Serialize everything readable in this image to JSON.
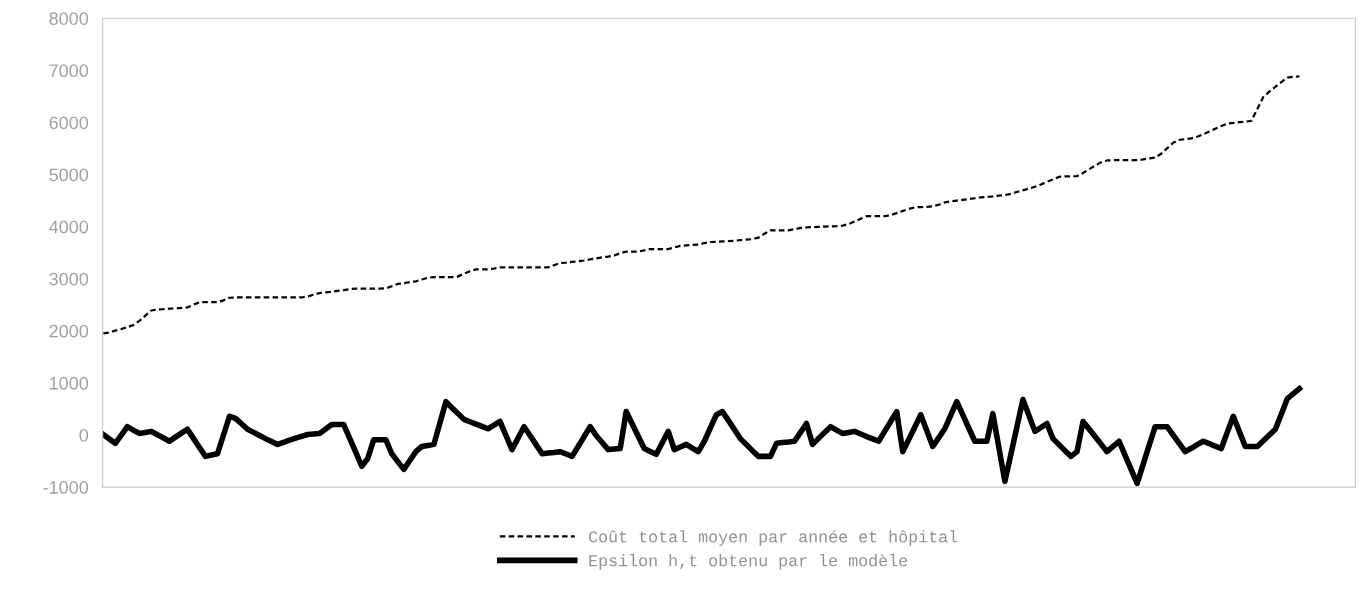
{
  "chart_data": {
    "type": "line",
    "categories": [
      null,
      null,
      null,
      null,
      null,
      null,
      null,
      null,
      null,
      null,
      null,
      null,
      null,
      null,
      null,
      null,
      null,
      null,
      null,
      null,
      null,
      null,
      null,
      null,
      null,
      null,
      null,
      null,
      null,
      null,
      null,
      null,
      null,
      null,
      null,
      null,
      null,
      null,
      null,
      null,
      null,
      null,
      null,
      null,
      null,
      null,
      null,
      null,
      null,
      null,
      null,
      null,
      null,
      null,
      null,
      null,
      null,
      null,
      null,
      null,
      null,
      null,
      null,
      null,
      null,
      null,
      null,
      null,
      null,
      null,
      null,
      null,
      null,
      null,
      null,
      null,
      null,
      null,
      null,
      null,
      null,
      null,
      null,
      null,
      null,
      null,
      null,
      null,
      null,
      null,
      null,
      null,
      null,
      null,
      null,
      null,
      null,
      null,
      null,
      null,
      null,
      null,
      null,
      null,
      null,
      null,
      null,
      null,
      null,
      null,
      null,
      null,
      null,
      null,
      null,
      null,
      null,
      null,
      null,
      null,
      null,
      null,
      null,
      null,
      null,
      null,
      null,
      null,
      null,
      null,
      null,
      null,
      null,
      null,
      null,
      null,
      null,
      null,
      null,
      null,
      null,
      null,
      null,
      null,
      null,
      null,
      null,
      null,
      null,
      null,
      null,
      null,
      null,
      null,
      null,
      null,
      null,
      null,
      null,
      null,
      null,
      null,
      null,
      null,
      null,
      null,
      null,
      null,
      null,
      null,
      null,
      null,
      null,
      null,
      null,
      null,
      null,
      null,
      null,
      null,
      null,
      null,
      null,
      null,
      null,
      null,
      null,
      null,
      null,
      null,
      null,
      null,
      null,
      null,
      null,
      null,
      null,
      null,
      null,
      null
    ],
    "ylim": [
      -1000,
      8000
    ],
    "yticks": [
      -1000,
      0,
      1000,
      2000,
      3000,
      4000,
      5000,
      6000,
      7000,
      8000
    ],
    "tick_labels": "y",
    "grid": false,
    "legend": "bottom",
    "series": [
      {
        "name": "Coût total moyen par année et hôpital",
        "color": "#000000",
        "line_style": "dashed",
        "values": [
          1950,
          1965,
          2005,
          2035,
          2070,
          2110,
          2190,
          2290,
          2390,
          2410,
          2415,
          2425,
          2430,
          2440,
          2450,
          2500,
          2550,
          2550,
          2550,
          2550,
          2585,
          2635,
          2640,
          2640,
          2640,
          2640,
          2640,
          2640,
          2640,
          2640,
          2640,
          2640,
          2640,
          2640,
          2660,
          2695,
          2725,
          2740,
          2750,
          2765,
          2780,
          2800,
          2810,
          2810,
          2810,
          2810,
          2810,
          2815,
          2855,
          2900,
          2915,
          2935,
          2950,
          2985,
          3020,
          3030,
          3030,
          3030,
          3030,
          3045,
          3095,
          3145,
          3180,
          3180,
          3180,
          3195,
          3220,
          3220,
          3220,
          3220,
          3220,
          3220,
          3220,
          3220,
          3220,
          3260,
          3300,
          3310,
          3325,
          3335,
          3350,
          3370,
          3390,
          3410,
          3425,
          3445,
          3490,
          3520,
          3520,
          3520,
          3545,
          3570,
          3570,
          3570,
          3570,
          3600,
          3630,
          3640,
          3650,
          3655,
          3685,
          3705,
          3710,
          3715,
          3720,
          3730,
          3740,
          3750,
          3760,
          3790,
          3865,
          3930,
          3930,
          3930,
          3930,
          3950,
          3975,
          3985,
          3990,
          3995,
          4000,
          4005,
          4010,
          4020,
          4050,
          4100,
          4150,
          4200,
          4200,
          4200,
          4200,
          4220,
          4260,
          4300,
          4340,
          4370,
          4375,
          4380,
          4390,
          4420,
          4465,
          4485,
          4500,
          4515,
          4530,
          4545,
          4560,
          4570,
          4580,
          4595,
          4605,
          4630,
          4665,
          4695,
          4730,
          4765,
          4810,
          4860,
          4905,
          4955,
          4965,
          4965,
          4970,
          5030,
          5100,
          5170,
          5235,
          5270,
          5275,
          5275,
          5275,
          5275,
          5275,
          5290,
          5310,
          5325,
          5400,
          5505,
          5610,
          5665,
          5680,
          5695,
          5725,
          5775,
          5825,
          5880,
          5930,
          5980,
          5990,
          6005,
          6015,
          6030,
          6260,
          6490,
          6590,
          6685,
          6775,
          6860,
          6875,
          6885
        ]
      },
      {
        "name": "Epsilon h,t obtenu par le modèle",
        "color": "#000000",
        "line_style": "solid",
        "values": [
          10,
          -75,
          -160,
          0,
          160,
          95,
          30,
          50,
          70,
          5,
          -55,
          -120,
          -40,
          35,
          110,
          -65,
          -240,
          -410,
          -385,
          -360,
          0,
          360,
          320,
          215,
          110,
          50,
          -10,
          -70,
          -125,
          -180,
          -140,
          -100,
          -60,
          -25,
          10,
          20,
          30,
          115,
          200,
          200,
          200,
          -65,
          -330,
          -600,
          -450,
          -90,
          -90,
          -90,
          -360,
          -510,
          -660,
          -490,
          -320,
          -220,
          -200,
          -180,
          230,
          640,
          525,
          415,
          300,
          255,
          210,
          165,
          120,
          190,
          260,
          -10,
          -280,
          -60,
          160,
          -10,
          -185,
          -360,
          -345,
          -335,
          -320,
          -365,
          -410,
          -220,
          -30,
          160,
          -10,
          -145,
          -280,
          -270,
          -260,
          450,
          210,
          -25,
          -260,
          -315,
          -370,
          -150,
          70,
          -280,
          -230,
          -180,
          -250,
          -320,
          -120,
          135,
          390,
          450,
          280,
          105,
          -70,
          -185,
          -300,
          -410,
          -410,
          -410,
          -160,
          -145,
          -135,
          -120,
          50,
          220,
          -180,
          -65,
          50,
          160,
          95,
          30,
          50,
          70,
          20,
          -30,
          -75,
          -120,
          70,
          260,
          450,
          -320,
          -85,
          150,
          390,
          85,
          -220,
          -50,
          120,
          380,
          640,
          385,
          130,
          -120,
          -120,
          -120,
          410,
          -240,
          -890,
          -370,
          155,
          680,
          375,
          70,
          145,
          220,
          -70,
          -185,
          -300,
          -410,
          -320,
          260,
          115,
          -30,
          -175,
          -320,
          -220,
          -120,
          -390,
          -660,
          -930,
          -565,
          -200,
          160,
          160,
          160,
          0,
          -160,
          -320,
          -255,
          -185,
          -120,
          -165,
          -215,
          -260,
          50,
          360,
          70,
          -220,
          -220,
          -220,
          -110,
          0,
          110,
          405,
          700,
          795,
          890
        ]
      }
    ]
  }
}
